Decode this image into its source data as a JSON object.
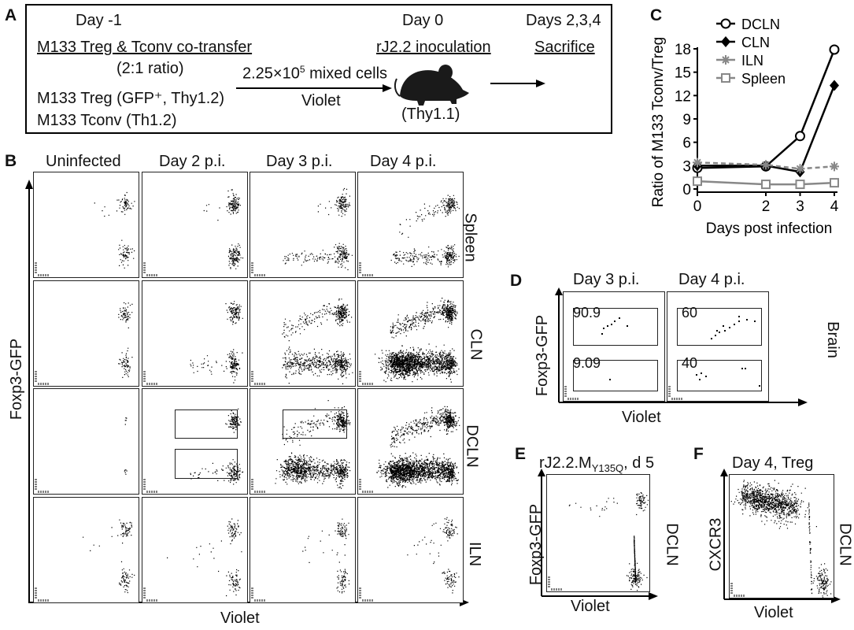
{
  "panelA": {
    "letter": "A",
    "day_minus1": "Day -1",
    "cotransfer": "M133 Treg & Tconv co-transfer",
    "ratio": "(2:1 ratio)",
    "treg_line": "M133 Treg (GFP⁺, Thy1.2)",
    "tconv_line": "M133 Tconv (Th1.2)",
    "cells_prefix": "2.25×10",
    "cells_exp": "5",
    "cells_suffix": " mixed cells",
    "violet": "Violet",
    "day0": "Day 0",
    "inoculation": "rJ2.2 inoculation",
    "mouse_strain": "(Thy1.1)",
    "days_sac": "Days 2,3,4",
    "sacrifice": "Sacrifice"
  },
  "panelB": {
    "letter": "B",
    "columns": [
      "Uninfected",
      "Day 2 p.i.",
      "Day 3 p.i.",
      "Day 4 p.i."
    ],
    "rows": [
      "Spleen",
      "CLN",
      "DCLN",
      "ILN"
    ],
    "ylabel": "Foxp3-GFP",
    "xlabel": "Violet"
  },
  "panelC": {
    "letter": "C",
    "ylabel": "Ratio of M133 Tconv/Treg",
    "xlabel": "Days post infection",
    "chart_data": {
      "type": "line",
      "x": [
        0,
        2,
        3,
        4
      ],
      "x_ticks": [
        "0",
        "2",
        "3",
        "4"
      ],
      "y_ticks": [
        "0",
        "3",
        "6",
        "9",
        "12",
        "15",
        "18"
      ],
      "ylim": [
        0,
        18
      ],
      "xlabel": "Days post infection",
      "ylabel": "Ratio of M133 Tconv/Treg",
      "legend_position": "top-right",
      "series": [
        {
          "name": "DCLN",
          "values": [
            2.7,
            2.9,
            6.8,
            17.9
          ],
          "color": "#000000",
          "marker": "open-circle",
          "dash": false
        },
        {
          "name": "CLN",
          "values": [
            3.0,
            3.0,
            2.2,
            13.3
          ],
          "color": "#000000",
          "marker": "filled-diamond",
          "dash": false
        },
        {
          "name": "ILN",
          "values": [
            3.4,
            3.1,
            2.6,
            2.9
          ],
          "color": "#888888",
          "marker": "asterisk",
          "dash": true
        },
        {
          "name": "Spleen",
          "values": [
            1.0,
            0.6,
            0.6,
            0.8
          ],
          "color": "#888888",
          "marker": "open-square",
          "dash": false
        }
      ]
    }
  },
  "panelD": {
    "letter": "D",
    "columns": [
      "Day 3 p.i.",
      "Day 4 p.i."
    ],
    "row": "Brain",
    "ylabel": "Foxp3-GFP",
    "xlabel": "Violet",
    "gates_day3": [
      "90.9",
      "9.09"
    ],
    "gates_day4": [
      "60",
      "40"
    ]
  },
  "panelE": {
    "letter": "E",
    "title_prefix": "rJ2.2.M",
    "title_sub": "Y135Q",
    "title_suffix": ", d 5",
    "row": "DCLN",
    "ylabel": "Foxp3-GFP",
    "xlabel": "Violet"
  },
  "panelF": {
    "letter": "F",
    "title": "Day 4, Treg",
    "row": "DCLN",
    "ylabel": "CXCR3",
    "xlabel": "Violet"
  }
}
